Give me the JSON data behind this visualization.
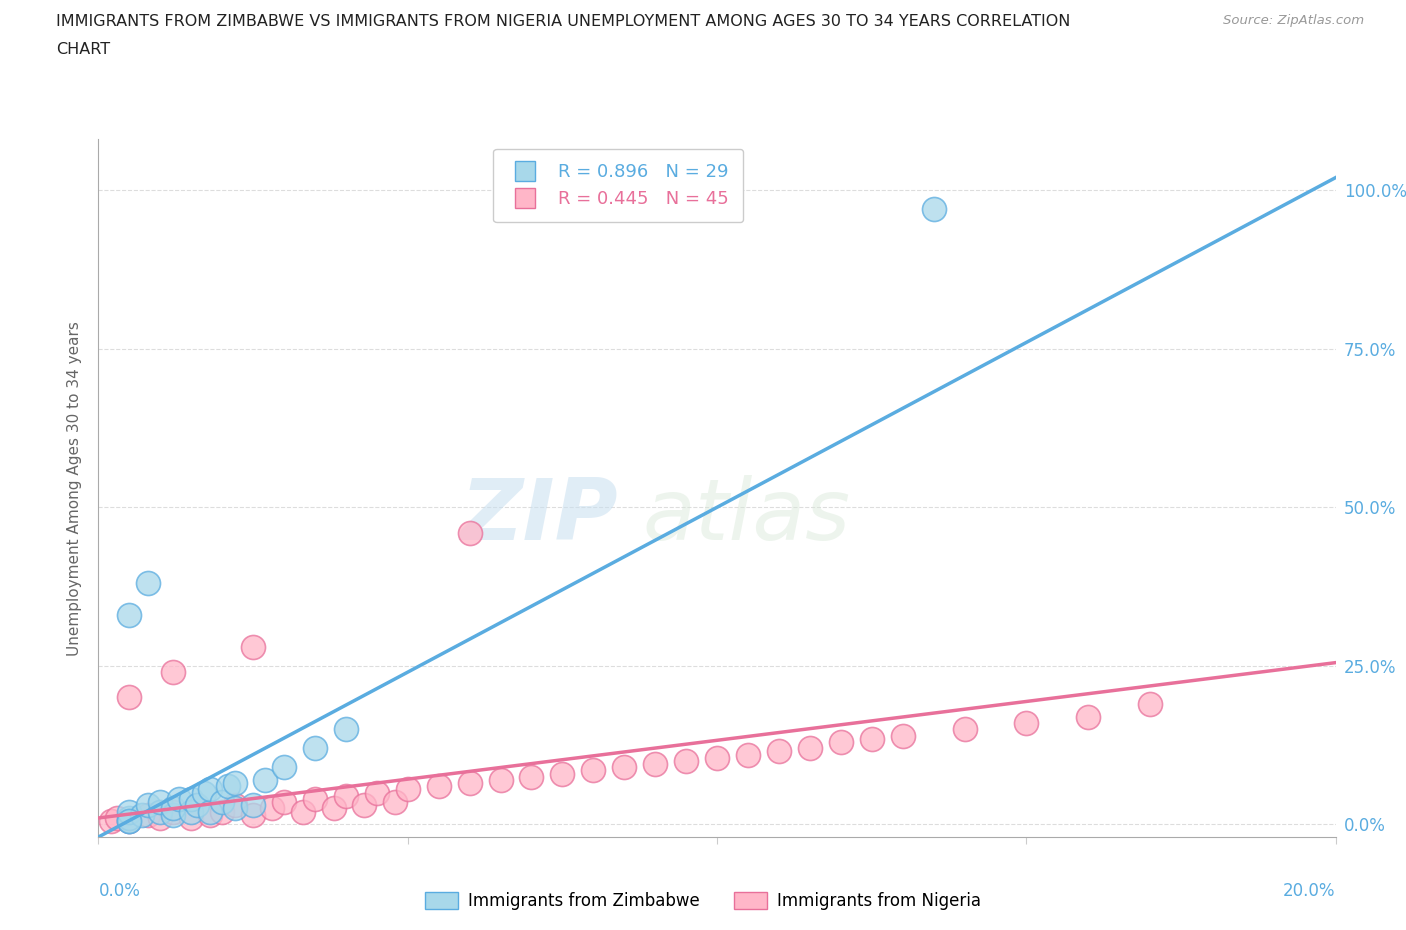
{
  "title_line1": "IMMIGRANTS FROM ZIMBABWE VS IMMIGRANTS FROM NIGERIA UNEMPLOYMENT AMONG AGES 30 TO 34 YEARS CORRELATION",
  "title_line2": "CHART",
  "source": "Source: ZipAtlas.com",
  "ylabel": "Unemployment Among Ages 30 to 34 years",
  "watermark_zip": "ZIP",
  "watermark_atlas": "atlas",
  "zimbabwe_R": 0.896,
  "zimbabwe_N": 29,
  "nigeria_R": 0.445,
  "nigeria_N": 45,
  "zimbabwe_color": "#a8d8ea",
  "nigeria_color": "#ffb6c8",
  "zimbabwe_line_color": "#5aace0",
  "nigeria_line_color": "#e8709a",
  "xlim": [
    0.0,
    0.2
  ],
  "ylim": [
    -0.02,
    1.08
  ],
  "yticks": [
    0.0,
    0.25,
    0.5,
    0.75,
    1.0
  ],
  "ytick_labels": [
    "0.0%",
    "25.0%",
    "50.0%",
    "75.0%",
    "100.0%"
  ],
  "zimbabwe_x": [
    0.005,
    0.005,
    0.005,
    0.007,
    0.008,
    0.01,
    0.01,
    0.012,
    0.012,
    0.013,
    0.015,
    0.015,
    0.016,
    0.017,
    0.018,
    0.018,
    0.02,
    0.021,
    0.022,
    0.022,
    0.025,
    0.027,
    0.03,
    0.035,
    0.04,
    0.005,
    0.008,
    0.135,
    0.005
  ],
  "zimbabwe_y": [
    0.005,
    0.01,
    0.02,
    0.015,
    0.03,
    0.02,
    0.035,
    0.015,
    0.025,
    0.04,
    0.02,
    0.04,
    0.03,
    0.05,
    0.02,
    0.055,
    0.035,
    0.06,
    0.025,
    0.065,
    0.03,
    0.07,
    0.09,
    0.12,
    0.15,
    0.33,
    0.38,
    0.97,
    0.005
  ],
  "nigeria_x": [
    0.002,
    0.003,
    0.005,
    0.008,
    0.01,
    0.012,
    0.015,
    0.018,
    0.02,
    0.022,
    0.025,
    0.028,
    0.03,
    0.033,
    0.035,
    0.038,
    0.04,
    0.043,
    0.045,
    0.048,
    0.05,
    0.055,
    0.06,
    0.065,
    0.07,
    0.075,
    0.08,
    0.085,
    0.09,
    0.095,
    0.1,
    0.105,
    0.11,
    0.115,
    0.12,
    0.125,
    0.13,
    0.14,
    0.15,
    0.16,
    0.005,
    0.012,
    0.025,
    0.06,
    0.17
  ],
  "nigeria_y": [
    0.005,
    0.01,
    0.005,
    0.015,
    0.01,
    0.02,
    0.01,
    0.015,
    0.02,
    0.03,
    0.015,
    0.025,
    0.035,
    0.02,
    0.04,
    0.025,
    0.045,
    0.03,
    0.05,
    0.035,
    0.055,
    0.06,
    0.065,
    0.07,
    0.075,
    0.08,
    0.085,
    0.09,
    0.095,
    0.1,
    0.105,
    0.11,
    0.115,
    0.12,
    0.13,
    0.135,
    0.14,
    0.15,
    0.16,
    0.17,
    0.2,
    0.24,
    0.28,
    0.46,
    0.19
  ],
  "zim_line_x0": 0.0,
  "zim_line_y0": -0.02,
  "zim_line_x1": 0.2,
  "zim_line_y1": 1.02,
  "nig_line_x0": 0.0,
  "nig_line_y0": 0.01,
  "nig_line_x1": 0.2,
  "nig_line_y1": 0.255,
  "background_color": "#ffffff",
  "grid_color": "#dddddd"
}
